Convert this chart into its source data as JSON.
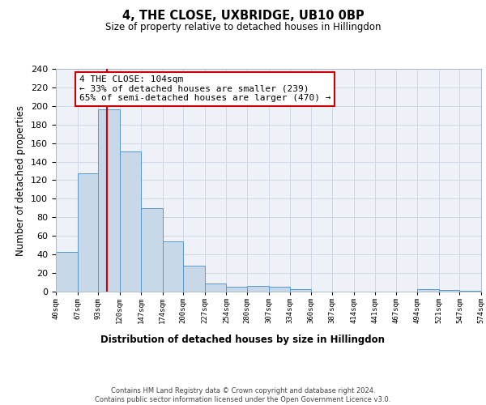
{
  "title": "4, THE CLOSE, UXBRIDGE, UB10 0BP",
  "subtitle": "Size of property relative to detached houses in Hillingdon",
  "xlabel": "Distribution of detached houses by size in Hillingdon",
  "ylabel": "Number of detached properties",
  "bar_edges": [
    40,
    67,
    93,
    120,
    147,
    174,
    200,
    227,
    254,
    280,
    307,
    334,
    360,
    387,
    414,
    441,
    467,
    494,
    521,
    547,
    574
  ],
  "bar_heights": [
    43,
    127,
    196,
    151,
    90,
    54,
    28,
    9,
    5,
    6,
    5,
    3,
    0,
    0,
    0,
    0,
    0,
    3,
    2,
    1,
    1
  ],
  "bar_color": "#c8d8e8",
  "bar_edge_color": "#5599cc",
  "red_line_x": 104,
  "annotation_box_text": "4 THE CLOSE: 104sqm\n← 33% of detached houses are smaller (239)\n65% of semi-detached houses are larger (470) →",
  "annotation_box_color": "#ffffff",
  "annotation_box_edge_color": "#cc0000",
  "ylim": [
    0,
    240
  ],
  "yticks": [
    0,
    20,
    40,
    60,
    80,
    100,
    120,
    140,
    160,
    180,
    200,
    220,
    240
  ],
  "xtick_labels": [
    "40sqm",
    "67sqm",
    "93sqm",
    "120sqm",
    "147sqm",
    "174sqm",
    "200sqm",
    "227sqm",
    "254sqm",
    "280sqm",
    "307sqm",
    "334sqm",
    "360sqm",
    "387sqm",
    "414sqm",
    "441sqm",
    "467sqm",
    "494sqm",
    "521sqm",
    "547sqm",
    "574sqm"
  ],
  "grid_color": "#d0d8e8",
  "background_color": "#eef2f8",
  "footer_line1": "Contains HM Land Registry data © Crown copyright and database right 2024.",
  "footer_line2": "Contains public sector information licensed under the Open Government Licence v3.0."
}
